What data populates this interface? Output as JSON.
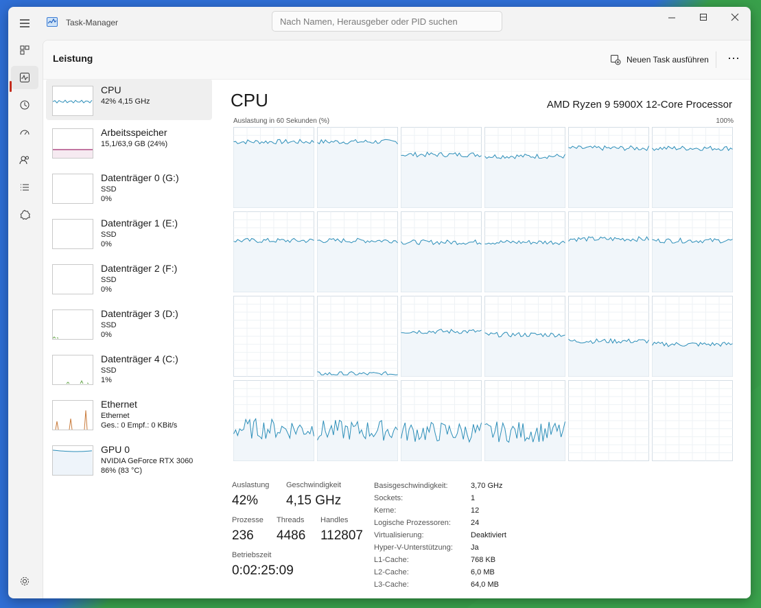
{
  "window": {
    "title": "Task-Manager",
    "search_placeholder": "Nach Namen, Herausgeber oder PID suchen"
  },
  "header": {
    "page_title": "Leistung",
    "run_task_label": "Neuen Task ausführen",
    "more_label": "⋯"
  },
  "resources": [
    {
      "name": "CPU",
      "line1": "42% 4,15 GHz",
      "line2": ""
    },
    {
      "name": "Arbeitsspeicher",
      "line1": "15,1/63,9 GB (24%)",
      "line2": ""
    },
    {
      "name": "Datenträger 0 (G:)",
      "line1": "SSD",
      "line2": "0%"
    },
    {
      "name": "Datenträger 1 (E:)",
      "line1": "SSD",
      "line2": "0%"
    },
    {
      "name": "Datenträger 2 (F:)",
      "line1": "SSD",
      "line2": "0%"
    },
    {
      "name": "Datenträger 3 (D:)",
      "line1": "SSD",
      "line2": "0%"
    },
    {
      "name": "Datenträger 4 (C:)",
      "line1": "SSD",
      "line2": "1%"
    },
    {
      "name": "Ethernet",
      "line1": "Ethernet",
      "line2": "Ges.: 0 Empf.: 0 KBit/s"
    },
    {
      "name": "GPU 0",
      "line1": "NVIDIA GeForce RTX 3060",
      "line2": "86% (83 °C)"
    }
  ],
  "detail": {
    "title": "CPU",
    "model": "AMD Ryzen 9 5900X 12-Core Processor",
    "graph_caption": "Auslastung in 60 Sekunden (%)",
    "graph_max": "100%",
    "stats": {
      "util_label": "Auslastung",
      "util_value": "42%",
      "speed_label": "Geschwindigkeit",
      "speed_value": "4,15 GHz",
      "proc_label": "Prozesse",
      "proc_value": "236",
      "threads_label": "Threads",
      "threads_value": "4486",
      "handles_label": "Handles",
      "handles_value": "112807",
      "uptime_label": "Betriebszeit",
      "uptime_value": "0:02:25:09"
    },
    "specs": [
      {
        "k": "Basisgeschwindigkeit:",
        "v": "3,70 GHz"
      },
      {
        "k": "Sockets:",
        "v": "1"
      },
      {
        "k": "Kerne:",
        "v": "12"
      },
      {
        "k": "Logische Prozessoren:",
        "v": "24"
      },
      {
        "k": "Virtualisierung:",
        "v": "Deaktiviert"
      },
      {
        "k": "Hyper-V-Unterstützung:",
        "v": "Ja"
      },
      {
        "k": "L1-Cache:",
        "v": "768 KB"
      },
      {
        "k": "L2-Cache:",
        "v": "6,0 MB"
      },
      {
        "k": "L3-Cache:",
        "v": "64,0 MB"
      }
    ],
    "core_levels": [
      82,
      82,
      66,
      64,
      74,
      74,
      64,
      64,
      62,
      62,
      66,
      64,
      0,
      3,
      56,
      52,
      44,
      40,
      40,
      38,
      36,
      36,
      null,
      null
    ]
  },
  "colors": {
    "cpu_line": "#2a8db8",
    "cpu_fill": "#f1f6fa",
    "mem_line": "#a02b6e",
    "net_line": "#c87a3a",
    "disk_line": "#6aa84f"
  }
}
